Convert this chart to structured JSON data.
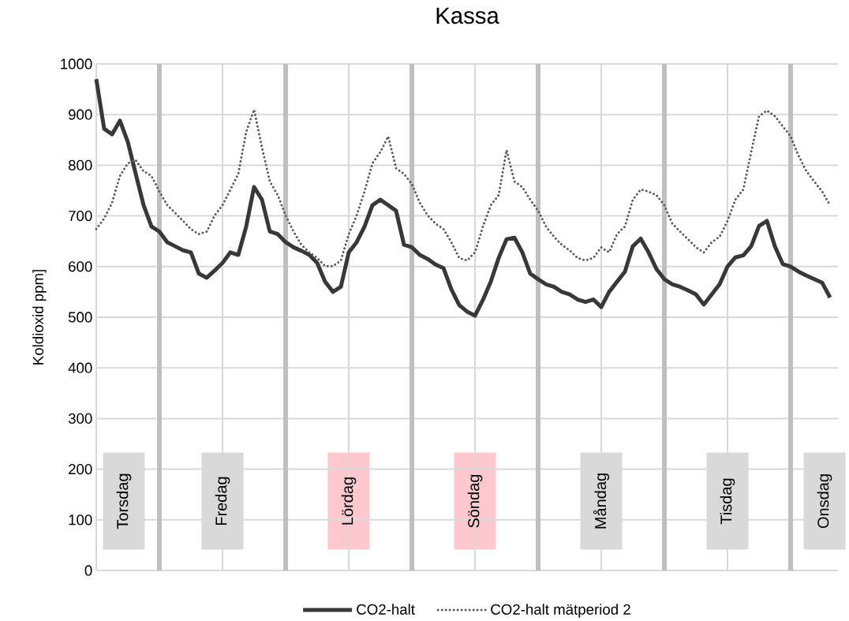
{
  "chart_data": {
    "type": "line",
    "title": "Kassa",
    "ylabel": "Koldioxid ppm]",
    "categories": [
      null,
      null,
      null,
      null,
      null,
      null,
      null,
      null,
      null,
      null,
      null,
      null,
      null,
      null,
      null,
      null,
      null,
      null,
      null,
      null,
      null,
      null,
      null,
      null,
      null,
      null,
      null,
      null,
      null,
      null,
      null,
      null,
      null,
      null,
      null,
      null,
      null,
      null,
      null,
      null,
      null,
      null,
      null,
      null,
      null,
      null,
      null,
      null,
      null,
      null,
      null,
      null,
      null,
      null,
      null,
      null,
      null,
      null,
      null,
      null,
      null,
      null,
      null,
      null,
      null,
      null,
      null,
      null,
      null,
      null,
      null,
      null,
      null,
      null,
      null,
      null,
      null,
      null,
      null,
      null,
      null,
      null,
      null,
      null,
      null,
      null,
      null,
      null,
      null,
      null,
      null,
      null,
      null,
      null
    ],
    "series": [
      {
        "name": "CO2-halt",
        "color": "#383838",
        "line_style": "solid",
        "values": [
          970,
          872,
          861,
          888,
          846,
          783,
          721,
          679,
          669,
          648,
          640,
          632,
          628,
          586,
          578,
          592,
          607,
          628,
          623,
          679,
          757,
          732,
          669,
          664,
          648,
          638,
          631,
          623,
          607,
          570,
          550,
          560,
          628,
          648,
          679,
          721,
          732,
          721,
          710,
          643,
          638,
          623,
          615,
          604,
          597,
          555,
          524,
          511,
          503,
          534,
          570,
          617,
          654,
          657,
          628,
          586,
          575,
          565,
          560,
          550,
          545,
          535,
          530,
          535,
          520,
          550,
          570,
          590,
          640,
          655,
          628,
          595,
          575,
          565,
          560,
          553,
          545,
          525,
          545,
          565,
          600,
          618,
          622,
          640,
          680,
          690,
          640,
          605,
          600,
          590,
          582,
          575,
          568,
          539
        ]
      },
      {
        "name": "CO2-halt mätperiod 2",
        "color": "#595959",
        "line_style": "dotted",
        "values": [
          674,
          695,
          726,
          779,
          804,
          810,
          788,
          779,
          748,
          721,
          706,
          690,
          674,
          664,
          669,
          701,
          721,
          752,
          783,
          866,
          910,
          835,
          768,
          741,
          701,
          669,
          643,
          628,
          617,
          601,
          601,
          612,
          664,
          701,
          748,
          804,
          826,
          857,
          794,
          783,
          763,
          726,
          701,
          685,
          674,
          648,
          617,
          612,
          628,
          679,
          721,
          741,
          830,
          768,
          757,
          732,
          710,
          679,
          659,
          643,
          632,
          617,
          612,
          617,
          638,
          628,
          664,
          679,
          732,
          752,
          748,
          741,
          721,
          685,
          669,
          654,
          638,
          628,
          648,
          659,
          690,
          732,
          752,
          826,
          897,
          908,
          897,
          877,
          857,
          819,
          788,
          768,
          748,
          721
        ]
      }
    ],
    "ylim": [
      0,
      1000
    ],
    "yticks": [
      0,
      100,
      200,
      300,
      400,
      500,
      600,
      700,
      800,
      900,
      1000
    ],
    "grid": true,
    "legend": "bottom",
    "tick_labels": "y",
    "annotations": [
      "Torsdag",
      "Fredag",
      "Lördag",
      "Söndag",
      "Måndag",
      "Tisdag",
      "Onsdag"
    ]
  }
}
